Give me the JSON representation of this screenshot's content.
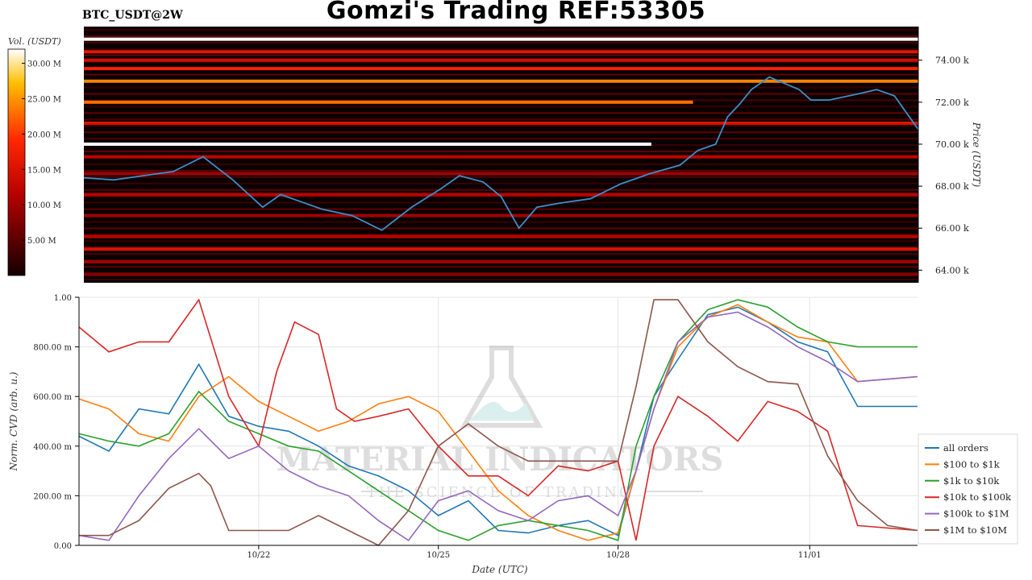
{
  "header": {
    "title": "Gomzi's Trading REF:53305",
    "pair": "BTC_USDT@2W"
  },
  "watermark": {
    "brand": "MATERIAL INDICATORS",
    "tagline": "THE SCIENCE OF TRADING"
  },
  "colors": {
    "heatmap_bg": "#0a0000",
    "price_line": "#3a8fc8"
  },
  "chart_data": [
    {
      "type": "heatmap",
      "title": "BTC_USDT@2W",
      "colorbar": {
        "label": "Vol. (USDT)",
        "ticks": [
          "30.00 M",
          "25.00 M",
          "20.00 M",
          "15.00 M",
          "10.00 M",
          "5.00 M"
        ],
        "tick_values": [
          30,
          25,
          20,
          15,
          10,
          5
        ],
        "range": [
          0,
          32
        ]
      },
      "ylabel": "Price (USDT)",
      "y_ticks": [
        "74.00 k",
        "72.00 k",
        "70.00 k",
        "68.00 k",
        "66.00 k",
        "64.00 k"
      ],
      "y_tick_values": [
        74000,
        72000,
        70000,
        68000,
        66000,
        64000
      ],
      "ylim": [
        63400,
        75600
      ],
      "x_range_days": [
        "10/19",
        "11/02"
      ],
      "bands": [
        {
          "price": 75000,
          "vol": 33,
          "x0": 0.0,
          "x1": 1.0
        },
        {
          "price": 74400,
          "vol": 16,
          "x0": 0.0,
          "x1": 1.0
        },
        {
          "price": 74000,
          "vol": 14,
          "x0": 0.0,
          "x1": 1.0
        },
        {
          "price": 73600,
          "vol": 18,
          "x0": 0.0,
          "x1": 1.0
        },
        {
          "price": 73000,
          "vol": 24,
          "x0": 0.0,
          "x1": 1.0
        },
        {
          "price": 72000,
          "vol": 23,
          "x0": 0.0,
          "x1": 0.73
        },
        {
          "price": 71000,
          "vol": 15,
          "x0": 0.0,
          "x1": 1.0
        },
        {
          "price": 70000,
          "vol": 33,
          "x0": 0.0,
          "x1": 0.68
        },
        {
          "price": 69400,
          "vol": 12,
          "x0": 0.0,
          "x1": 1.0
        },
        {
          "price": 68600,
          "vol": 10,
          "x0": 0.0,
          "x1": 1.0
        },
        {
          "price": 67600,
          "vol": 12,
          "x0": 0.0,
          "x1": 1.0
        },
        {
          "price": 66600,
          "vol": 10,
          "x0": 0.0,
          "x1": 1.0
        },
        {
          "price": 65600,
          "vol": 12,
          "x0": 0.0,
          "x1": 1.0
        },
        {
          "price": 65000,
          "vol": 15,
          "x0": 0.0,
          "x1": 1.0
        },
        {
          "price": 64400,
          "vol": 10,
          "x0": 0.0,
          "x1": 1.0
        },
        {
          "price": 63800,
          "vol": 8,
          "x0": 0.0,
          "x1": 1.0
        }
      ],
      "price_series": {
        "name": "price",
        "x": [
          0,
          0.5,
          1,
          1.5,
          2,
          2.5,
          3,
          3.3,
          3.6,
          4,
          4.5,
          5,
          5.5,
          6,
          6.3,
          6.7,
          7,
          7.3,
          7.6,
          8,
          8.5,
          9,
          9.5,
          10,
          10.3,
          10.6,
          10.8,
          11,
          11.2,
          11.5,
          12,
          12.2,
          12.5,
          13,
          13.3,
          13.6,
          14
        ],
        "y": [
          68400,
          68300,
          68500,
          68700,
          69400,
          68300,
          67000,
          67600,
          67300,
          66900,
          66600,
          65900,
          67000,
          67900,
          68500,
          68200,
          67500,
          66000,
          67000,
          67200,
          67400,
          68100,
          68600,
          69000,
          69700,
          70000,
          71300,
          71900,
          72600,
          73200,
          72600,
          72100,
          72100,
          72400,
          72600,
          72300,
          70700
        ]
      }
    },
    {
      "type": "line",
      "xlabel": "Date (UTC)",
      "ylabel": "Norm. CVD (arb. u.)",
      "ylim": [
        0,
        1
      ],
      "y_ticks": [
        "1.00",
        "800.00 m",
        "600.00 m",
        "400.00 m",
        "200.00 m",
        "0.00"
      ],
      "y_tick_values": [
        1.0,
        0.8,
        0.6,
        0.4,
        0.2,
        0.0
      ],
      "x_ticks": [
        "10/22",
        "10/25",
        "10/28",
        "11/01"
      ],
      "x_tick_values": [
        3,
        6,
        9,
        12.2
      ],
      "xlim": [
        0,
        14
      ],
      "series": [
        {
          "name": "all orders",
          "color": "#1f77b4",
          "x": [
            0,
            0.5,
            1,
            1.5,
            2,
            2.5,
            3,
            3.5,
            4,
            4.5,
            5,
            5.5,
            6,
            6.5,
            7,
            7.5,
            8,
            8.5,
            9,
            9.3,
            9.6,
            10,
            10.5,
            11,
            11.5,
            12,
            12.5,
            13,
            14
          ],
          "y": [
            0.44,
            0.38,
            0.55,
            0.53,
            0.73,
            0.52,
            0.48,
            0.46,
            0.4,
            0.32,
            0.28,
            0.22,
            0.12,
            0.18,
            0.06,
            0.05,
            0.08,
            0.1,
            0.04,
            0.3,
            0.6,
            0.75,
            0.93,
            0.96,
            0.9,
            0.82,
            0.78,
            0.56,
            0.56
          ]
        },
        {
          "name": "$100 to $1k",
          "color": "#ff7f0e",
          "x": [
            0,
            0.5,
            1,
            1.5,
            2,
            2.5,
            3,
            3.5,
            4,
            4.5,
            5,
            5.5,
            6,
            6.5,
            7,
            7.5,
            8,
            8.5,
            9,
            9.3,
            9.6,
            10,
            10.5,
            11,
            11.5,
            12,
            12.5,
            13,
            14
          ],
          "y": [
            0.59,
            0.55,
            0.45,
            0.42,
            0.6,
            0.68,
            0.58,
            0.52,
            0.46,
            0.5,
            0.57,
            0.6,
            0.54,
            0.38,
            0.22,
            0.12,
            0.06,
            0.02,
            0.05,
            0.3,
            0.55,
            0.8,
            0.92,
            0.97,
            0.9,
            0.84,
            0.82,
            0.66,
            0.68
          ]
        },
        {
          "name": "$1k to $10k",
          "color": "#2ca02c",
          "x": [
            0,
            0.5,
            1,
            1.5,
            2,
            2.5,
            3,
            3.5,
            4,
            4.5,
            5,
            5.5,
            6,
            6.5,
            7,
            7.5,
            8,
            8.5,
            9,
            9.3,
            9.6,
            10,
            10.5,
            11,
            11.5,
            12,
            12.5,
            13,
            14
          ],
          "y": [
            0.45,
            0.42,
            0.4,
            0.45,
            0.62,
            0.5,
            0.45,
            0.4,
            0.38,
            0.3,
            0.22,
            0.14,
            0.06,
            0.02,
            0.08,
            0.1,
            0.08,
            0.06,
            0.02,
            0.4,
            0.6,
            0.82,
            0.95,
            0.99,
            0.96,
            0.88,
            0.82,
            0.8,
            0.8
          ]
        },
        {
          "name": "$10k to $100k",
          "color": "#d62728",
          "x": [
            0,
            0.5,
            1,
            1.5,
            2,
            2.5,
            3,
            3.3,
            3.6,
            4,
            4.3,
            4.6,
            5,
            5.5,
            6,
            6.5,
            7,
            7.5,
            8,
            8.5,
            9,
            9.3,
            9.6,
            10,
            10.5,
            11,
            11.5,
            12,
            12.5,
            13,
            14
          ],
          "y": [
            0.88,
            0.78,
            0.82,
            0.82,
            0.99,
            0.6,
            0.4,
            0.7,
            0.9,
            0.85,
            0.55,
            0.5,
            0.52,
            0.55,
            0.4,
            0.28,
            0.28,
            0.2,
            0.32,
            0.3,
            0.34,
            0.02,
            0.4,
            0.6,
            0.52,
            0.42,
            0.58,
            0.54,
            0.46,
            0.08,
            0.06
          ]
        },
        {
          "name": "$100k to $1M",
          "color": "#9467bd",
          "x": [
            0,
            0.5,
            1,
            1.5,
            2,
            2.5,
            3,
            3.5,
            4,
            4.5,
            5,
            5.5,
            6,
            6.5,
            7,
            7.5,
            8,
            8.5,
            9,
            9.3,
            9.6,
            10,
            10.5,
            11,
            11.5,
            12,
            12.5,
            13,
            14
          ],
          "y": [
            0.04,
            0.02,
            0.2,
            0.35,
            0.47,
            0.35,
            0.4,
            0.3,
            0.24,
            0.2,
            0.1,
            0.02,
            0.18,
            0.22,
            0.14,
            0.1,
            0.18,
            0.2,
            0.12,
            0.3,
            0.55,
            0.82,
            0.92,
            0.94,
            0.88,
            0.8,
            0.74,
            0.66,
            0.68
          ]
        },
        {
          "name": "$1M to $10M",
          "color": "#8c564b",
          "x": [
            0,
            0.5,
            1,
            1.5,
            2,
            2.2,
            2.5,
            3,
            3.5,
            4,
            4.5,
            5,
            5.5,
            6,
            6.5,
            7,
            7.5,
            8,
            8.5,
            9,
            9.3,
            9.6,
            10,
            10.5,
            11,
            11.5,
            12,
            12.5,
            13,
            13.5,
            14
          ],
          "y": [
            0.04,
            0.04,
            0.1,
            0.23,
            0.29,
            0.24,
            0.06,
            0.06,
            0.06,
            0.12,
            0.06,
            0.0,
            0.14,
            0.4,
            0.49,
            0.4,
            0.34,
            0.34,
            0.34,
            0.34,
            0.64,
            0.99,
            0.99,
            0.82,
            0.72,
            0.66,
            0.65,
            0.36,
            0.18,
            0.08,
            0.06
          ]
        }
      ],
      "legend": {
        "placement": "right"
      }
    }
  ]
}
